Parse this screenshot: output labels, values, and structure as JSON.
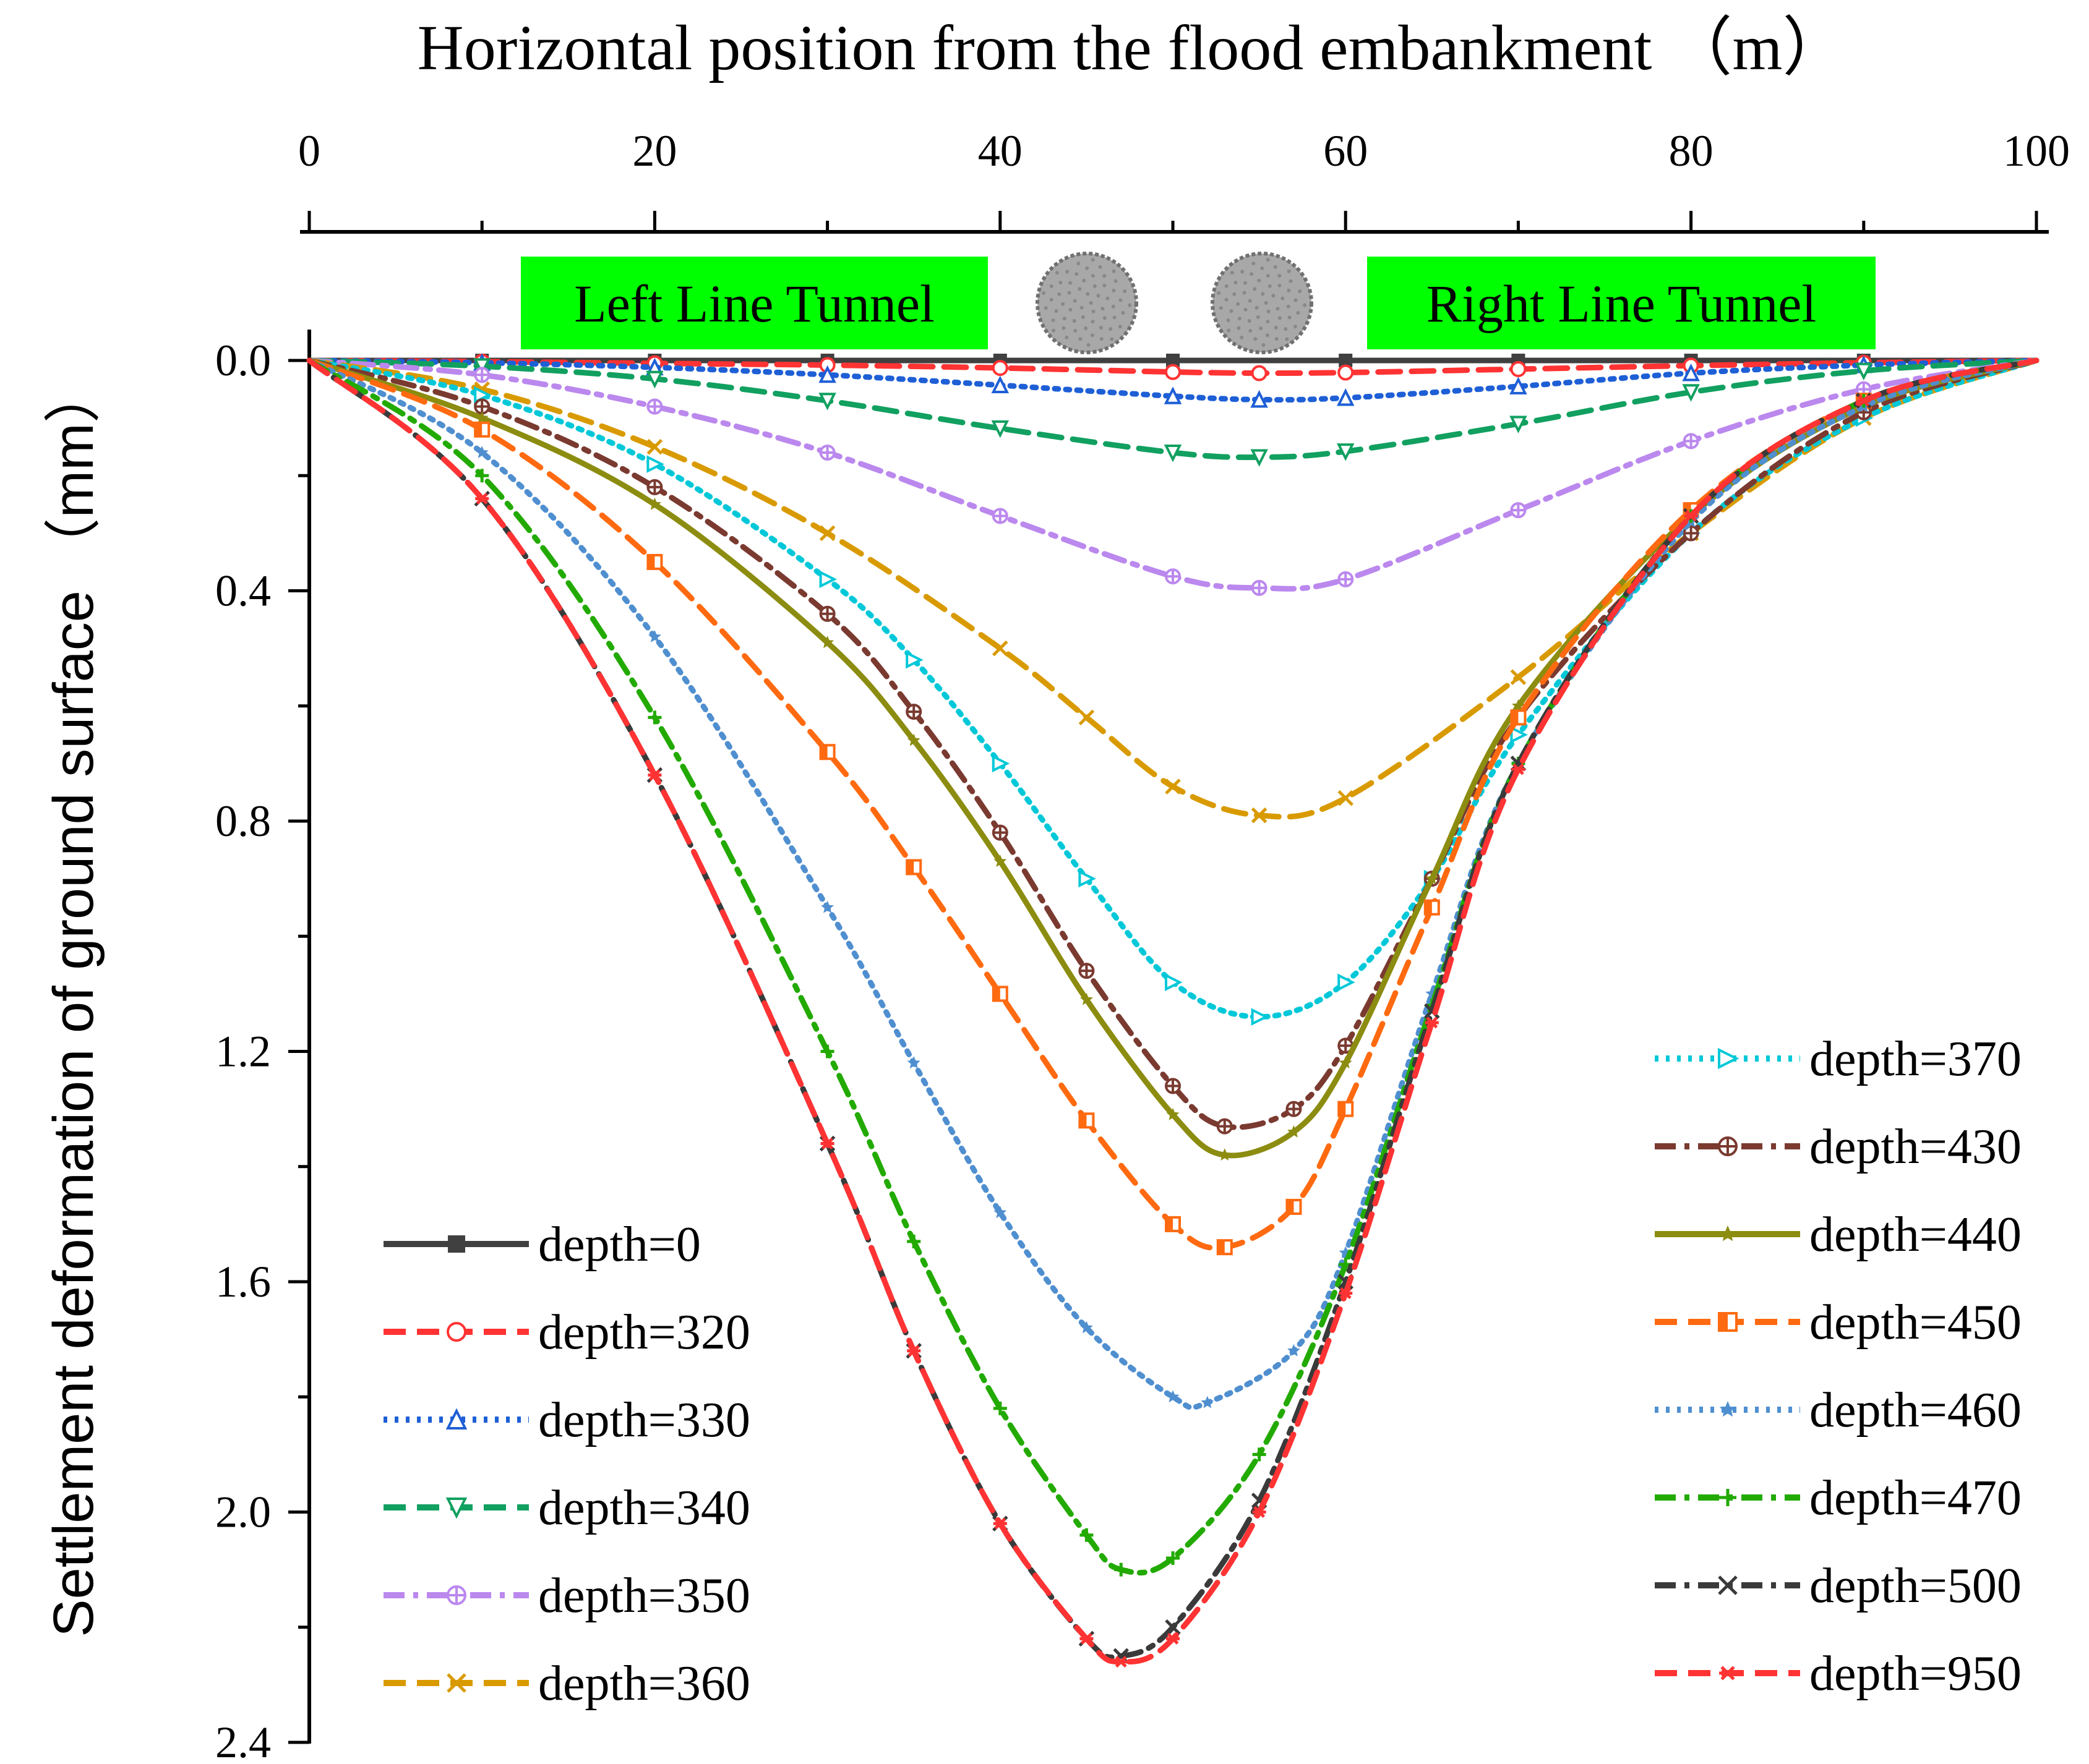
{
  "chart_data": {
    "type": "line",
    "title": "",
    "xlabel": "Horizontal position from the flood embankment （m）",
    "ylabel": "Settlement deformation of ground surface （mm）",
    "x_axis_position": "top",
    "y_axis_inverted": true,
    "xlim": [
      0,
      100
    ],
    "ylim": [
      0,
      2.4
    ],
    "x_ticks": [
      "0",
      "20",
      "40",
      "60",
      "80",
      "100"
    ],
    "y_ticks": [
      "0.0",
      "0.4",
      "0.8",
      "1.2",
      "1.6",
      "2.0",
      "2.4"
    ],
    "x_tick_values": [
      0,
      20,
      40,
      60,
      80,
      100
    ],
    "y_tick_values": [
      0,
      0.4,
      0.8,
      1.2,
      1.6,
      2.0,
      2.4
    ],
    "grid": false,
    "annotations": [
      {
        "text": "Left Line Tunnel",
        "background": "#00ff00"
      },
      {
        "text": "Right Line Tunnel",
        "background": "#00ff00"
      }
    ],
    "tunnels": [
      {
        "name": "left-tunnel",
        "x": 45.0
      },
      {
        "name": "right-tunnel",
        "x": 55.0
      }
    ],
    "legend_placement": "bottom-left and bottom-right",
    "series": [
      {
        "name": "depth=0",
        "color": "#404040",
        "dash": "solid",
        "marker": "square",
        "legend_column": "left",
        "x": [
          0,
          10,
          20,
          30,
          40,
          50,
          60,
          70,
          80,
          90,
          100
        ],
        "y": [
          0,
          0,
          0,
          0,
          0,
          0,
          0,
          0,
          0,
          0,
          0
        ]
      },
      {
        "name": "depth=320",
        "color": "#ff3333",
        "dash": "dash",
        "marker": "circle",
        "legend_column": "left",
        "x": [
          0,
          10,
          20,
          30,
          40,
          50,
          55,
          60,
          70,
          80,
          90,
          100
        ],
        "y": [
          0,
          0.002,
          0.005,
          0.008,
          0.013,
          0.02,
          0.022,
          0.021,
          0.015,
          0.009,
          0.004,
          0
        ]
      },
      {
        "name": "depth=330",
        "color": "#1e5fd6",
        "dash": "dot",
        "marker": "triangle",
        "legend_column": "left",
        "x": [
          0,
          10,
          20,
          30,
          40,
          50,
          55,
          60,
          70,
          80,
          90,
          100
        ],
        "y": [
          0,
          0.004,
          0.012,
          0.025,
          0.043,
          0.062,
          0.068,
          0.065,
          0.045,
          0.022,
          0.008,
          0
        ]
      },
      {
        "name": "depth=340",
        "color": "#11a060",
        "dash": "dash",
        "marker": "triangle-down",
        "legend_column": "left",
        "x": [
          0,
          10,
          20,
          30,
          40,
          50,
          55,
          60,
          70,
          80,
          90,
          100
        ],
        "y": [
          0,
          0.01,
          0.032,
          0.07,
          0.118,
          0.16,
          0.168,
          0.158,
          0.11,
          0.055,
          0.018,
          0
        ]
      },
      {
        "name": "depth=350",
        "color": "#bb88ee",
        "dash": "dashdot",
        "marker": "circle-cross",
        "legend_column": "left",
        "x": [
          0,
          10,
          20,
          30,
          40,
          50,
          55,
          60,
          70,
          80,
          90,
          100
        ],
        "y": [
          0,
          0.025,
          0.08,
          0.16,
          0.27,
          0.375,
          0.395,
          0.38,
          0.26,
          0.14,
          0.05,
          0
        ]
      },
      {
        "name": "depth=360",
        "color": "#d99a00",
        "dash": "dash",
        "marker": "x",
        "legend_column": "left",
        "x": [
          0,
          10,
          20,
          30,
          40,
          45,
          50,
          55,
          60,
          70,
          80,
          90,
          100
        ],
        "y": [
          0,
          0.05,
          0.15,
          0.3,
          0.5,
          0.62,
          0.74,
          0.79,
          0.76,
          0.55,
          0.3,
          0.1,
          0
        ]
      },
      {
        "name": "depth=370",
        "color": "#00c8d8",
        "dash": "dot",
        "marker": "triangle-right",
        "legend_column": "right",
        "x": [
          0,
          10,
          20,
          30,
          35,
          40,
          45,
          50,
          55,
          60,
          65,
          70,
          80,
          90,
          100
        ],
        "y": [
          0,
          0.06,
          0.18,
          0.38,
          0.52,
          0.7,
          0.9,
          1.08,
          1.14,
          1.08,
          0.9,
          0.65,
          0.3,
          0.1,
          0
        ]
      },
      {
        "name": "depth=430",
        "color": "#7a3a30",
        "dash": "dashdot",
        "marker": "circle-cross",
        "legend_column": "right",
        "x": [
          0,
          10,
          20,
          30,
          35,
          40,
          45,
          50,
          53,
          57,
          60,
          65,
          70,
          80,
          90,
          100
        ],
        "y": [
          0,
          0.08,
          0.22,
          0.44,
          0.61,
          0.82,
          1.06,
          1.26,
          1.33,
          1.3,
          1.19,
          0.9,
          0.62,
          0.3,
          0.09,
          0
        ]
      },
      {
        "name": "depth=440",
        "color": "#8c8c10",
        "dash": "solid",
        "marker": "star",
        "legend_column": "right",
        "x": [
          0,
          10,
          20,
          30,
          35,
          40,
          45,
          50,
          53,
          57,
          60,
          65,
          70,
          80,
          90,
          100
        ],
        "y": [
          0,
          0.1,
          0.25,
          0.49,
          0.66,
          0.87,
          1.11,
          1.31,
          1.38,
          1.34,
          1.22,
          0.9,
          0.6,
          0.27,
          0.08,
          0
        ]
      },
      {
        "name": "depth=450",
        "color": "#ff6a10",
        "dash": "dash",
        "marker": "square-half",
        "legend_column": "right",
        "x": [
          0,
          10,
          20,
          30,
          35,
          40,
          45,
          50,
          53,
          57,
          60,
          65,
          70,
          80,
          90,
          100
        ],
        "y": [
          0,
          0.12,
          0.35,
          0.68,
          0.88,
          1.1,
          1.32,
          1.5,
          1.54,
          1.47,
          1.3,
          0.95,
          0.62,
          0.26,
          0.07,
          0
        ]
      },
      {
        "name": "depth=460",
        "color": "#4f8fd0",
        "dash": "dot",
        "marker": "star-small",
        "legend_column": "right",
        "x": [
          0,
          10,
          20,
          30,
          35,
          40,
          45,
          50,
          52,
          57,
          60,
          65,
          70,
          80,
          90,
          100
        ],
        "y": [
          0,
          0.16,
          0.48,
          0.95,
          1.22,
          1.48,
          1.68,
          1.8,
          1.81,
          1.72,
          1.55,
          1.1,
          0.7,
          0.28,
          0.08,
          0
        ]
      },
      {
        "name": "depth=470",
        "color": "#22aa00",
        "dash": "dashdot",
        "marker": "plus",
        "legend_column": "right",
        "x": [
          0,
          10,
          20,
          30,
          35,
          40,
          45,
          47,
          50,
          55,
          60,
          65,
          70,
          80,
          90,
          100
        ],
        "y": [
          0,
          0.2,
          0.62,
          1.2,
          1.53,
          1.82,
          2.04,
          2.1,
          2.08,
          1.9,
          1.57,
          1.12,
          0.7,
          0.27,
          0.07,
          0
        ]
      },
      {
        "name": "depth=500",
        "color": "#3a3a3a",
        "dash": "dashdot",
        "marker": "x",
        "legend_column": "right",
        "x": [
          0,
          10,
          20,
          30,
          35,
          40,
          45,
          47,
          50,
          55,
          60,
          65,
          70,
          80,
          90,
          100
        ],
        "y": [
          0,
          0.24,
          0.72,
          1.36,
          1.72,
          2.02,
          2.22,
          2.25,
          2.2,
          1.98,
          1.6,
          1.13,
          0.7,
          0.27,
          0.07,
          0
        ]
      },
      {
        "name": "depth=950",
        "color": "#ff3333",
        "dash": "dash",
        "marker": "asterisk",
        "legend_column": "right",
        "x": [
          0,
          10,
          20,
          30,
          35,
          40,
          45,
          47,
          50,
          55,
          60,
          65,
          70,
          80,
          90,
          100
        ],
        "y": [
          0,
          0.24,
          0.72,
          1.36,
          1.72,
          2.02,
          2.22,
          2.26,
          2.22,
          2.0,
          1.62,
          1.15,
          0.71,
          0.27,
          0.07,
          0
        ]
      }
    ]
  }
}
